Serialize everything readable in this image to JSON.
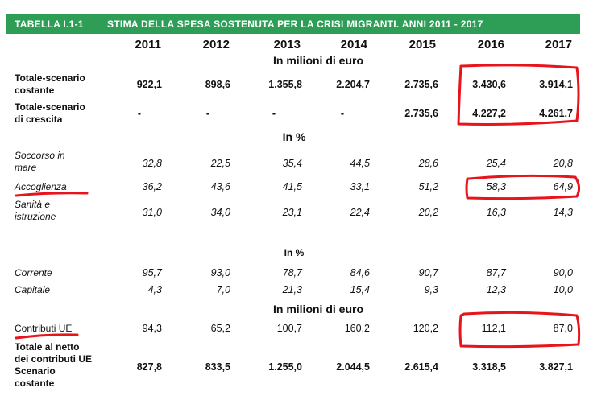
{
  "title": {
    "id": "TABELLA I.1-1",
    "text": "STIMA DELLA SPESA SOSTENUTA PER LA CRISI MIGRANTI. ANNI 2011 - 2017"
  },
  "years": [
    "2011",
    "2012",
    "2013",
    "2014",
    "2015",
    "2016",
    "2017"
  ],
  "sections": {
    "s1": "In milioni di euro",
    "s2": "In %",
    "s3": "In %",
    "s4": "In milioni di euro"
  },
  "rows": [
    {
      "label": [
        "Totale-scenario",
        "costante"
      ],
      "values": [
        "922,1",
        "898,6",
        "1.355,8",
        "2.204,7",
        "2.735,6",
        "3.430,6",
        "3.914,1"
      ]
    },
    {
      "label": [
        "Totale-scenario",
        "di crescita"
      ],
      "values": [
        "-",
        "-",
        "-",
        "-",
        "2.735,6",
        "4.227,2",
        "4.261,7"
      ]
    },
    {
      "label": [
        "Soccorso in",
        "mare"
      ],
      "values": [
        "32,8",
        "22,5",
        "35,4",
        "44,5",
        "28,6",
        "25,4",
        "20,8"
      ]
    },
    {
      "label": [
        "Accoglienza"
      ],
      "values": [
        "36,2",
        "43,6",
        "41,5",
        "33,1",
        "51,2",
        "58,3",
        "64,9"
      ]
    },
    {
      "label": [
        "Sanità e",
        "istruzione"
      ],
      "values": [
        "31,0",
        "34,0",
        "23,1",
        "22,4",
        "20,2",
        "16,3",
        "14,3"
      ]
    },
    {
      "label": [
        "Corrente"
      ],
      "values": [
        "95,7",
        "93,0",
        "78,7",
        "84,6",
        "90,7",
        "87,7",
        "90,0"
      ]
    },
    {
      "label": [
        "Capitale"
      ],
      "values": [
        "4,3",
        "7,0",
        "21,3",
        "15,4",
        "9,3",
        "12,3",
        "10,0"
      ]
    },
    {
      "label": [
        "Contributi UE"
      ],
      "values": [
        "94,3",
        "65,2",
        "100,7",
        "160,2",
        "120,2",
        "112,1",
        "87,0"
      ]
    },
    {
      "label": [
        "Totale al netto",
        "dei contributi UE",
        "Scenario",
        "costante"
      ],
      "values": [
        "827,8",
        "833,5",
        "1.255,0",
        "2.044,5",
        "2.615,4",
        "3.318,5",
        "3.827,1"
      ]
    }
  ],
  "annotation_color": "#e8141c",
  "header_color": "#2e9e56"
}
